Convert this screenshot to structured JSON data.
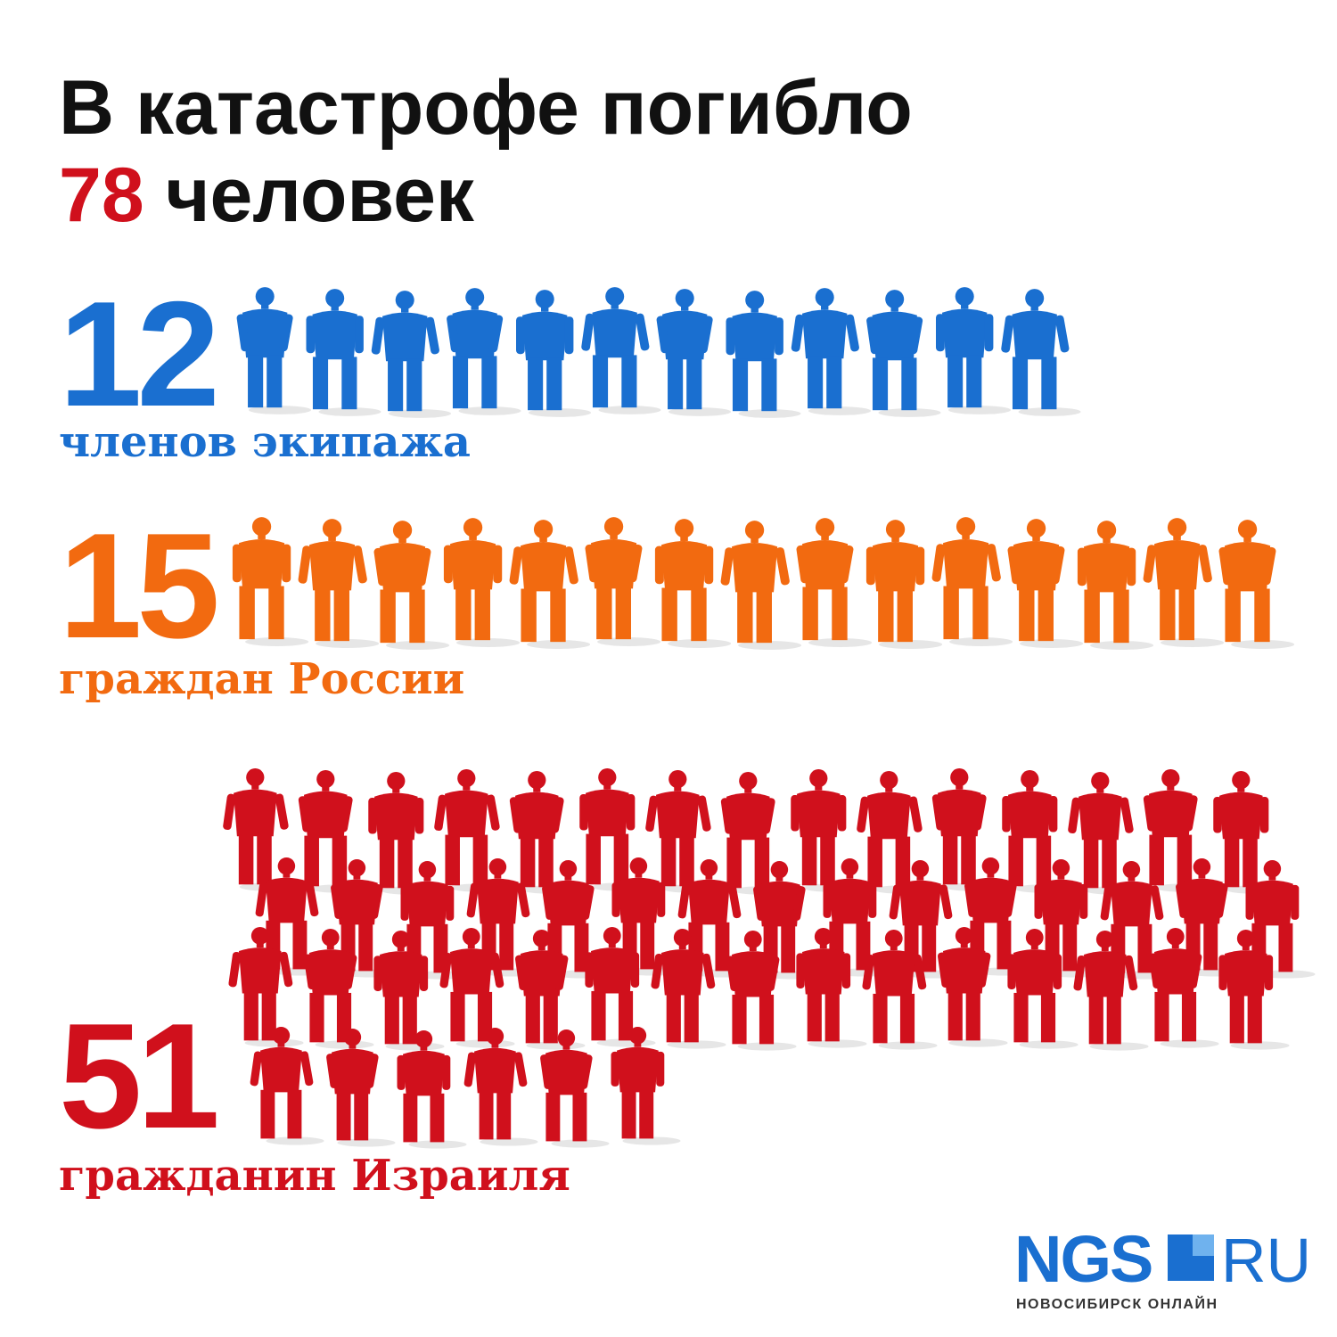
{
  "title": {
    "line1": "В катастрофе погибло",
    "total": "78",
    "unit": "человек"
  },
  "groups": [
    {
      "count": 12,
      "label": "членов экипажа",
      "color": "#1a6fd0"
    },
    {
      "count": 15,
      "label": "граждан России",
      "color": "#f26a10"
    },
    {
      "count": 51,
      "label": "гражданин Израиля",
      "color": "#d0101c"
    }
  ],
  "logo": {
    "brand": "NGS",
    "domain": "RU",
    "tagline": "НОВОСИБИРСК ОНЛАЙН"
  }
}
